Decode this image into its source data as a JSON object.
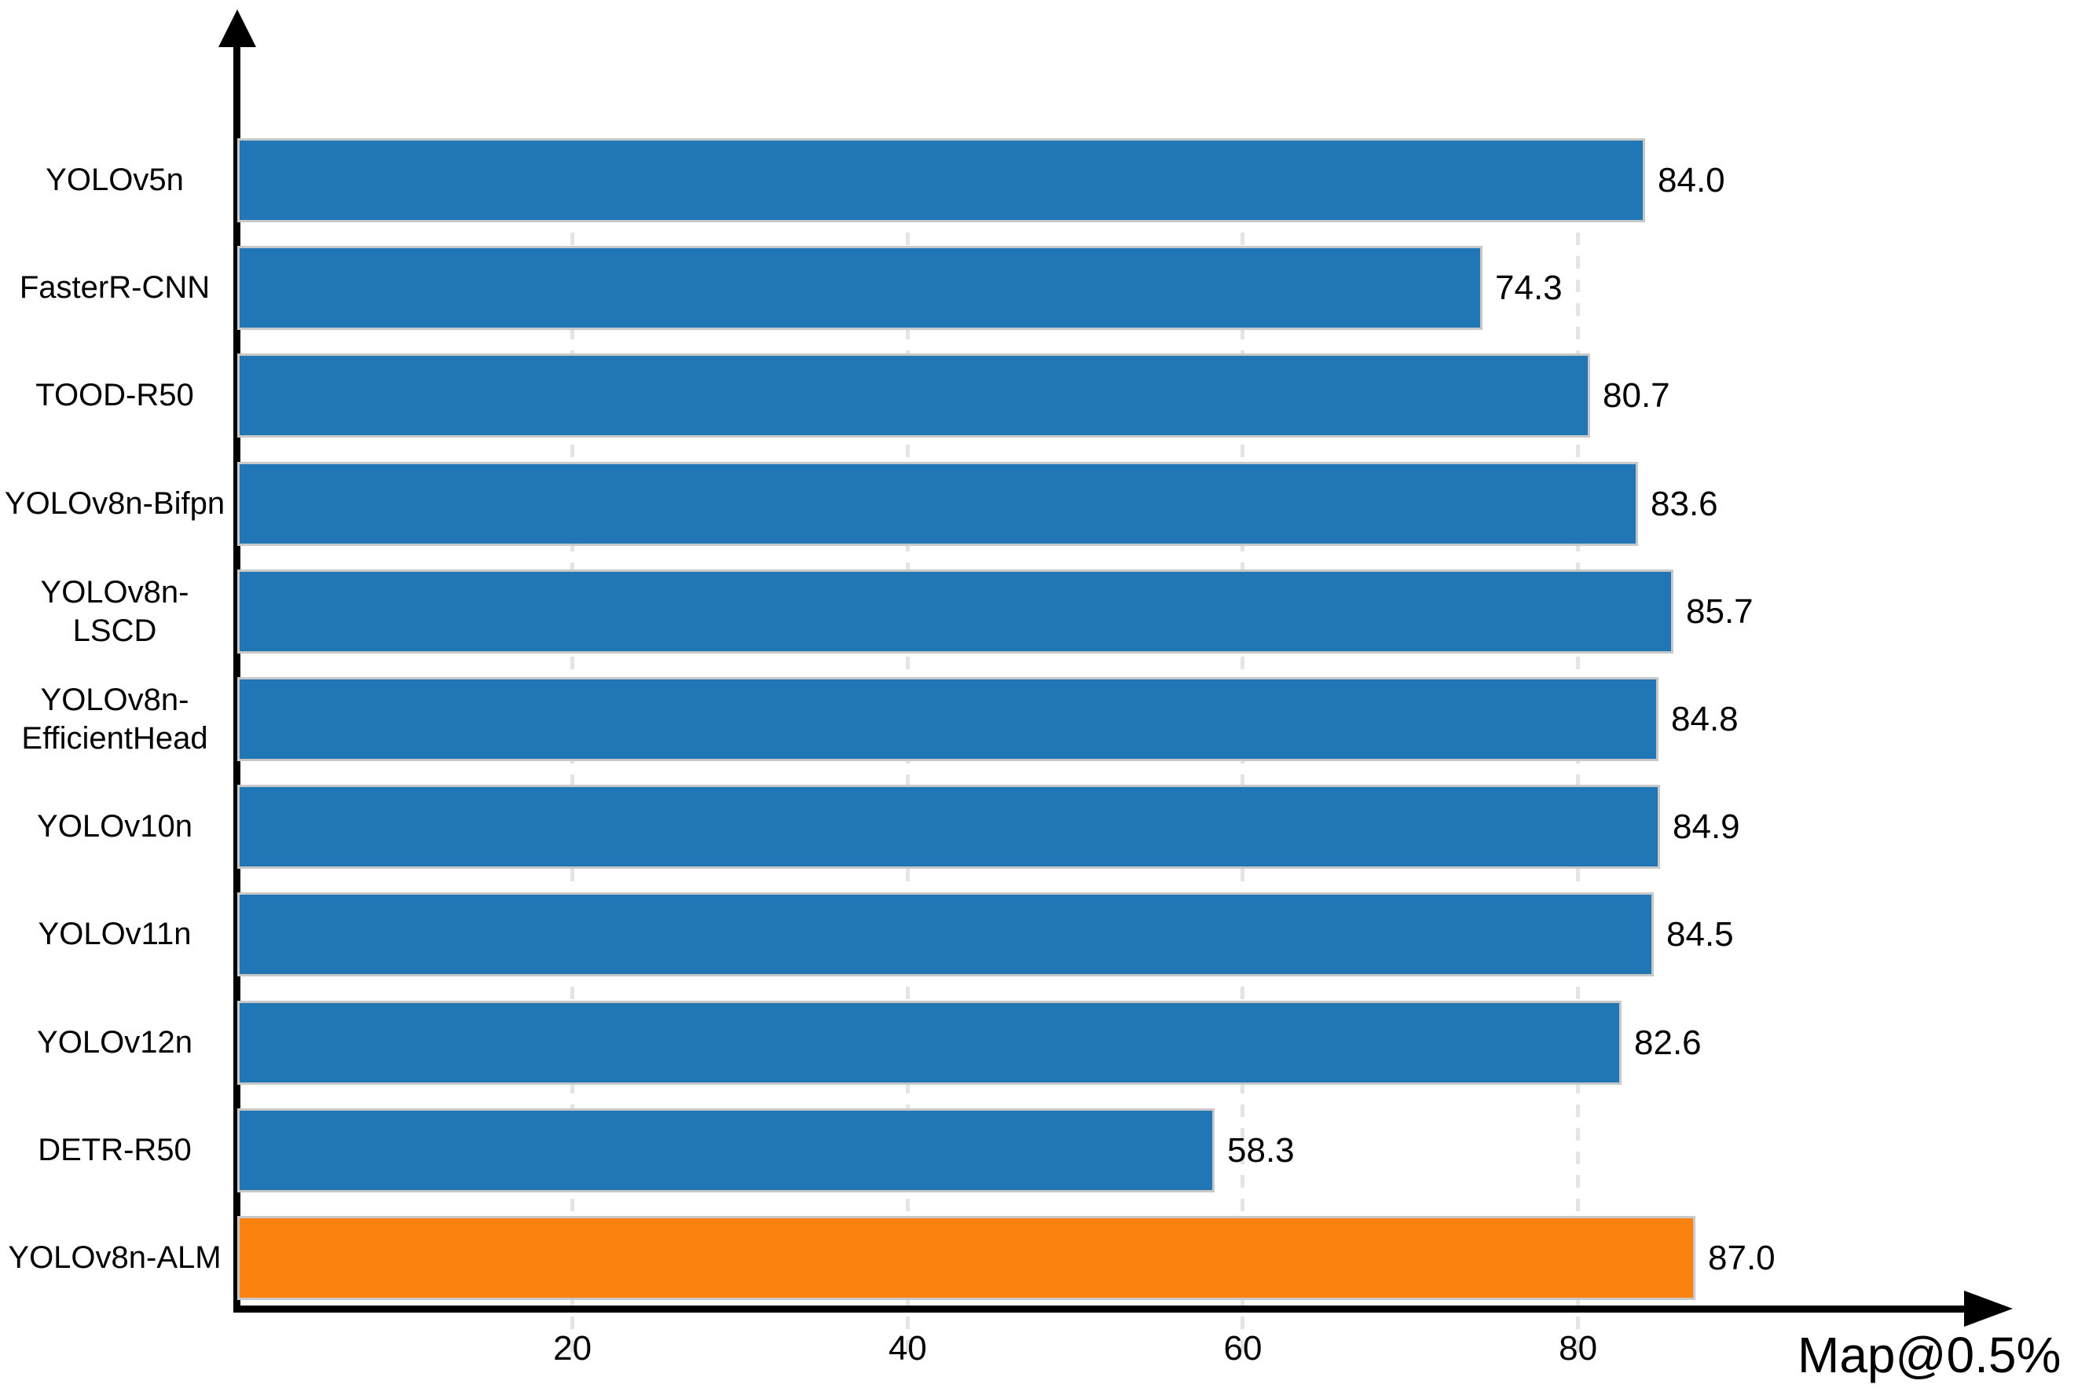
{
  "chart_data": {
    "type": "bar",
    "orientation": "horizontal",
    "title": "",
    "xlabel": "Map@0.5%",
    "ylabel": "",
    "categories": [
      "YOLOv5n",
      "FasterR-CNN",
      "TOOD-R50",
      "YOLOv8n-Bifpn",
      "YOLOv8n-LSCD",
      "YOLOv8n-EfficientHead",
      "YOLOv10n",
      "YOLOv11n",
      "YOLOv12n",
      "DETR-R50",
      "YOLOv8n-ALM"
    ],
    "categories_display": [
      "YOLOv5n",
      "FasterR-CNN",
      "TOOD-R50",
      "YOLOv8n-Bifpn",
      "YOLOv8n-LSCD",
      "YOLOv8n-\nEfficientHead",
      "YOLOv10n",
      "YOLOv11n",
      "YOLOv12n",
      "DETR-R50",
      "YOLOv8n-ALM"
    ],
    "values": [
      84.0,
      74.3,
      80.7,
      83.6,
      85.7,
      84.8,
      84.9,
      84.5,
      82.6,
      58.3,
      87.0
    ],
    "value_labels": [
      "84.0",
      "74.3",
      "80.7",
      "83.6",
      "85.7",
      "84.8",
      "84.9",
      "84.5",
      "82.6",
      "58.3",
      "87.0"
    ],
    "xticks": [
      "20",
      "40",
      "60",
      "80"
    ],
    "xlim": [
      0,
      100
    ],
    "grid": "vertical-dashed",
    "legend": "none",
    "bar_color": "#2177b5",
    "highlight_category": "YOLOv8n-ALM",
    "highlight_color": "#fb820e",
    "bar_border_color": "#c8c8c8",
    "gridline_color": "#e4e4e4",
    "axis_color": "#000000"
  }
}
